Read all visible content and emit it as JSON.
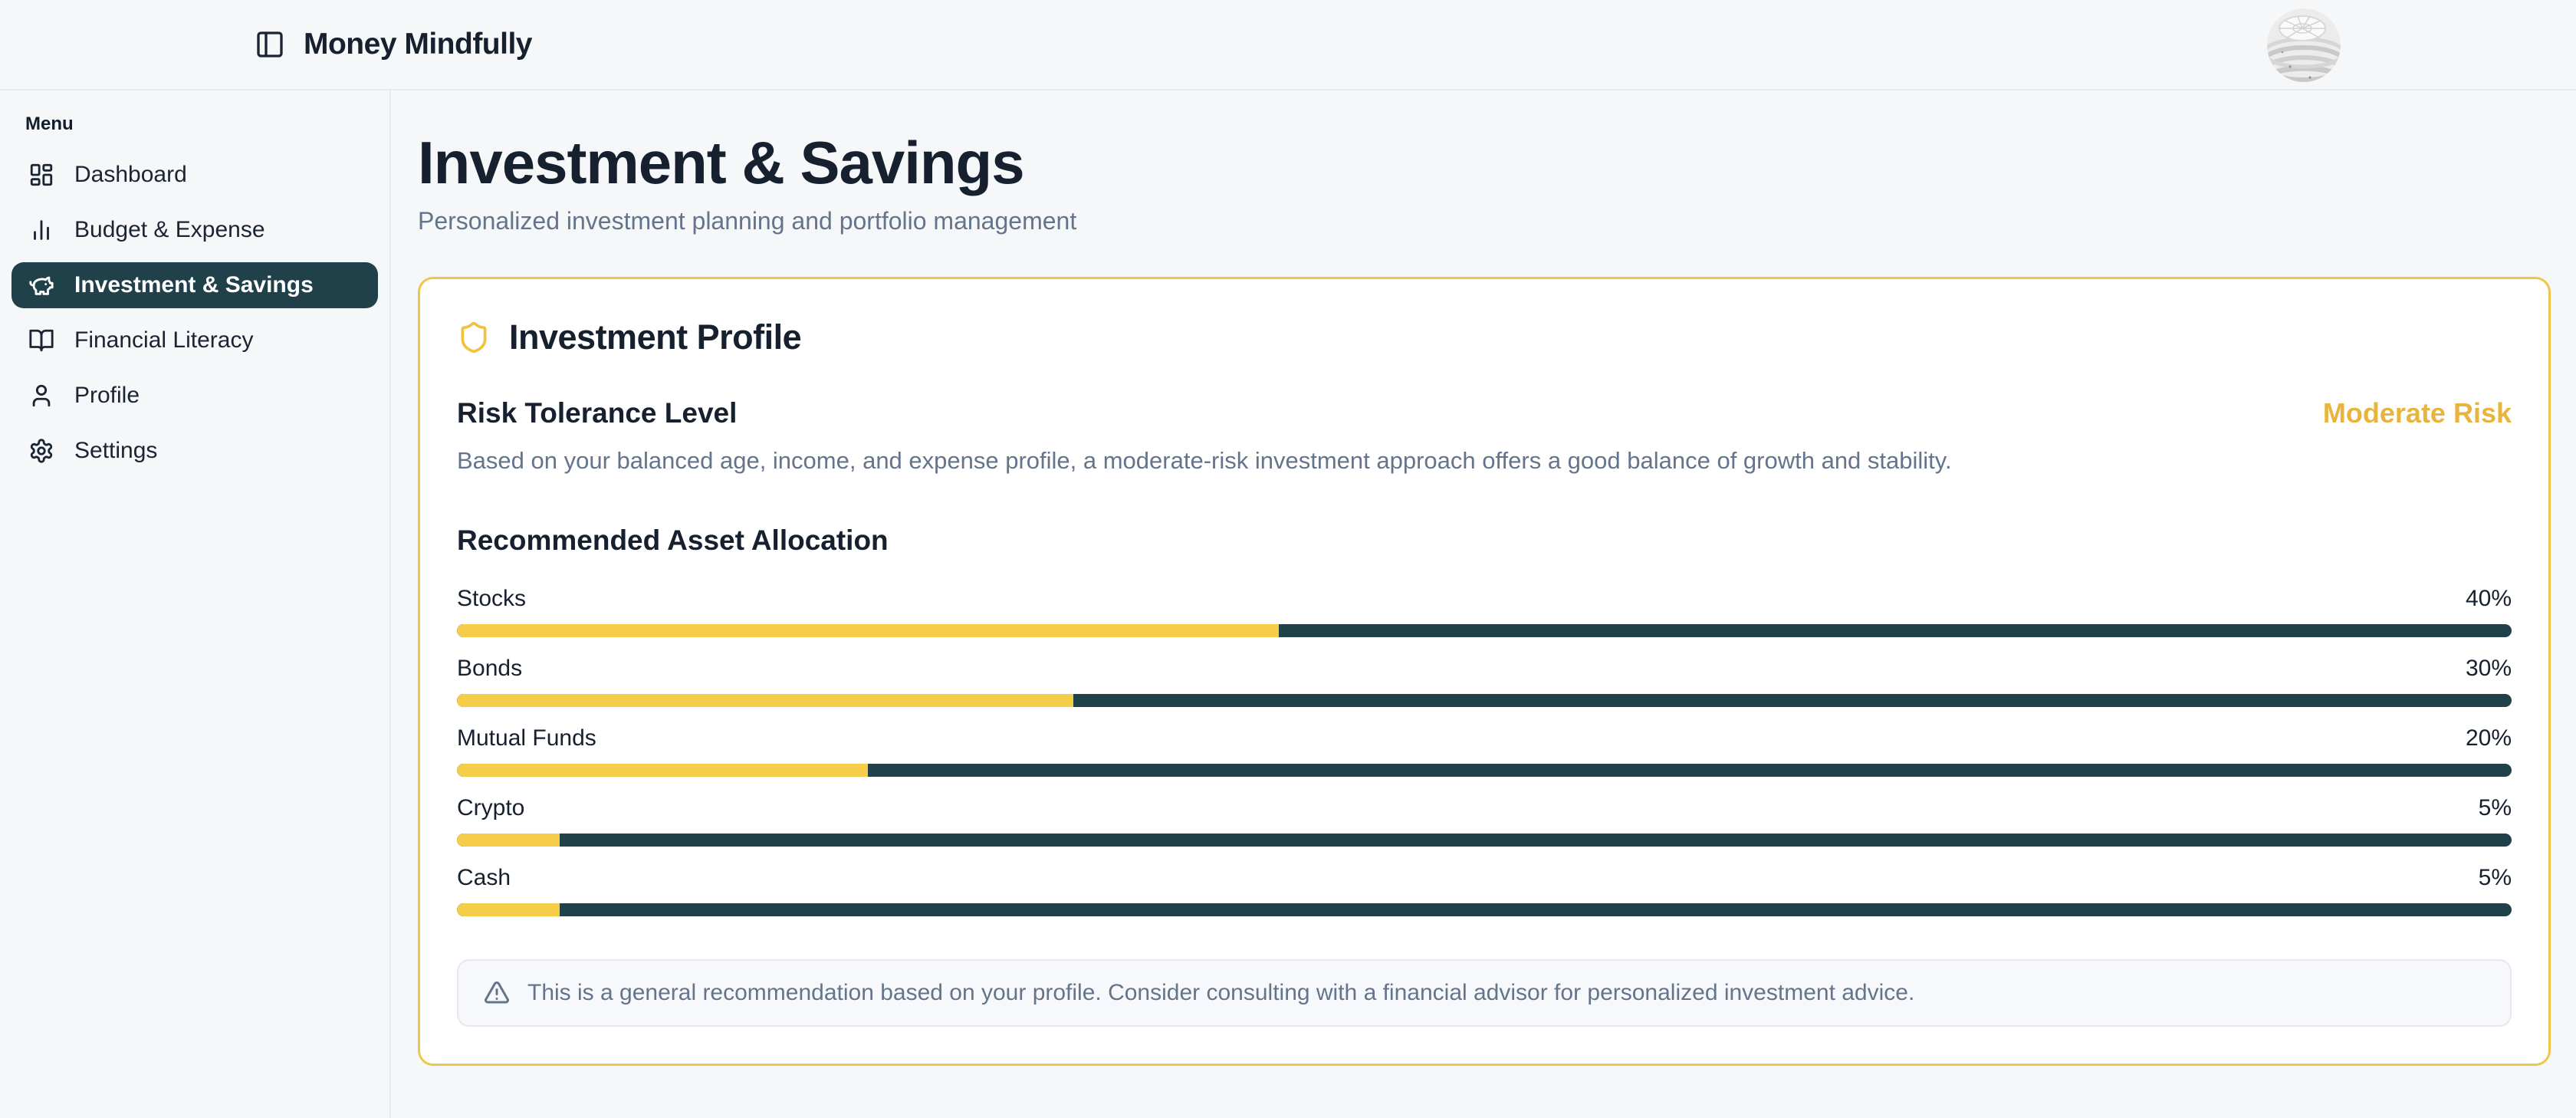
{
  "header": {
    "app_title": "Money Mindfully"
  },
  "sidebar": {
    "section_label": "Menu",
    "items": [
      {
        "label": "Dashboard",
        "icon": "dashboard-icon",
        "active": false
      },
      {
        "label": "Budget & Expense",
        "icon": "bar-chart-icon",
        "active": false
      },
      {
        "label": "Investment & Savings",
        "icon": "piggy-bank-icon",
        "active": true
      },
      {
        "label": "Financial Literacy",
        "icon": "book-open-icon",
        "active": false
      },
      {
        "label": "Profile",
        "icon": "user-icon",
        "active": false
      },
      {
        "label": "Settings",
        "icon": "gear-icon",
        "active": false
      }
    ]
  },
  "page": {
    "title": "Investment & Savings",
    "subtitle": "Personalized investment planning and portfolio management"
  },
  "profile_card": {
    "title": "Investment Profile",
    "icon": "shield-icon",
    "risk": {
      "heading": "Risk Tolerance Level",
      "level": "Moderate Risk",
      "description": "Based on your balanced age, income, and expense profile, a moderate-risk investment approach offers a good balance of growth and stability."
    },
    "allocation": {
      "heading": "Recommended Asset Allocation",
      "rows": [
        {
          "label": "Stocks",
          "percent": 40,
          "display": "40%"
        },
        {
          "label": "Bonds",
          "percent": 30,
          "display": "30%"
        },
        {
          "label": "Mutual Funds",
          "percent": 20,
          "display": "20%"
        },
        {
          "label": "Crypto",
          "percent": 5,
          "display": "5%"
        },
        {
          "label": "Cash",
          "percent": 5,
          "display": "5%"
        }
      ]
    },
    "note": "This is a general recommendation based on your profile. Consider consulting with a financial advisor for personalized investment advice."
  },
  "chart_data": {
    "type": "bar",
    "title": "Recommended Asset Allocation",
    "categories": [
      "Stocks",
      "Bonds",
      "Mutual Funds",
      "Crypto",
      "Cash"
    ],
    "values": [
      40,
      30,
      20,
      5,
      5
    ],
    "unit": "%",
    "xlim": [
      0,
      100
    ],
    "fill_color": "#f5cd48",
    "track_color": "#20404a"
  },
  "colors": {
    "brand_teal": "#20404a",
    "gold_fill": "#f5cd48",
    "gold_text": "#e9b43d",
    "card_border": "#f0c64a",
    "navy_text": "#16202e",
    "muted_text": "#64748b",
    "page_bg": "#f6f7f9",
    "divider": "#e7e9ee",
    "note_bg": "#f7f8fb"
  }
}
